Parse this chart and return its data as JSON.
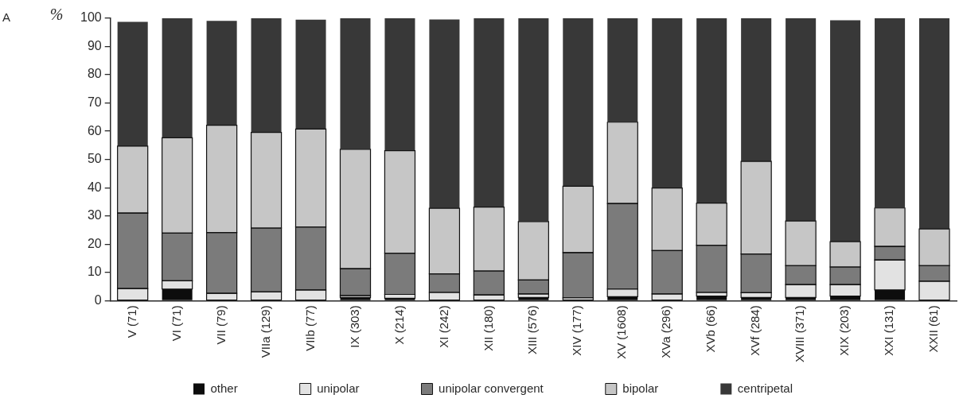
{
  "chart_data": {
    "type": "bar",
    "stacked": true,
    "ylabel": "%",
    "annotations": [
      "A"
    ],
    "categories": [
      "V (71)",
      "VI (71)",
      "VII (79)",
      "VIIa (129)",
      "VIIb (77)",
      "IX (303)",
      "X (214)",
      "XI (242)",
      "XII (180)",
      "XIII (576)",
      "XIV (177)",
      "XV (1608)",
      "XVa (296)",
      "XVb (66)",
      "XVf (284)",
      "XVIII (371)",
      "XIX (203)",
      "XXI (131)",
      "XXII (61)"
    ],
    "series": [
      {
        "name": "other",
        "color": "#0d0d0d",
        "values": [
          0,
          4.1,
          0,
          0,
          0,
          1.1,
          0.8,
          0,
          0,
          1.1,
          0,
          1.4,
          0,
          1.6,
          1.1,
          1.1,
          1.6,
          3.8,
          0
        ]
      },
      {
        "name": "unipolar",
        "color": "#e2e2e2",
        "values": [
          4.3,
          2.9,
          2.6,
          3.1,
          3.8,
          0.7,
          1.4,
          2.9,
          2.0,
          1.3,
          1.0,
          2.7,
          2.4,
          1.3,
          1.7,
          4.6,
          4.1,
          10.6,
          6.9
        ]
      },
      {
        "name": "unipolar convergent",
        "color": "#7b7b7b",
        "values": [
          26.7,
          16.9,
          21.5,
          22.6,
          22.3,
          9.5,
          14.6,
          6.6,
          8.5,
          4.9,
          16.0,
          30.3,
          15.3,
          16.7,
          13.7,
          6.7,
          6.2,
          4.8,
          5.5
        ]
      },
      {
        "name": "bipolar",
        "color": "#c6c6c6",
        "values": [
          23.7,
          33.8,
          38.0,
          33.9,
          34.7,
          42.3,
          36.3,
          23.2,
          22.6,
          20.7,
          23.5,
          28.8,
          22.2,
          14.9,
          32.8,
          15.8,
          9.0,
          13.6,
          13.0
        ]
      },
      {
        "name": "centripetal",
        "color": "#383838",
        "values": [
          44.0,
          42.3,
          37.0,
          40.4,
          38.7,
          46.4,
          46.9,
          66.9,
          66.9,
          72.0,
          59.5,
          36.8,
          60.1,
          65.5,
          50.7,
          71.8,
          78.4,
          67.2,
          74.6
        ]
      }
    ],
    "ylim": [
      0,
      100
    ],
    "yticks": [
      0,
      10,
      20,
      30,
      40,
      50,
      60,
      70,
      80,
      90,
      100
    ],
    "legend": "bottom"
  }
}
